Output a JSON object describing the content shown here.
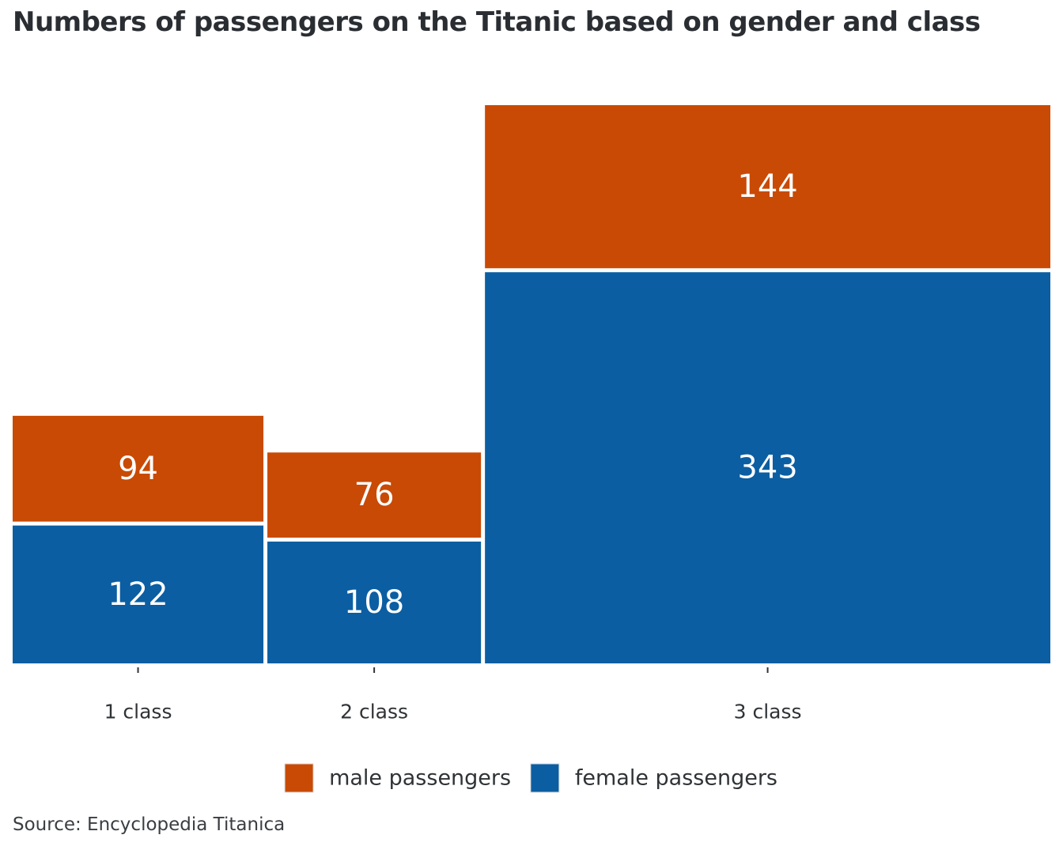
{
  "chart_data": {
    "type": "bar",
    "stacked": true,
    "variable_width": true,
    "title": "Numbers of passengers on the Titanic based on gender and class",
    "categories": [
      "1 class",
      "2 class",
      "3 class"
    ],
    "series": [
      {
        "name": "female passengers",
        "values": [
          122,
          108,
          343
        ],
        "color": "#0b5ea2"
      },
      {
        "name": "male passengers",
        "values": [
          94,
          76,
          144
        ],
        "color": "#c94a05"
      }
    ],
    "legend": {
      "position": "bottom",
      "order": [
        "male passengers",
        "female passengers"
      ]
    },
    "grid": false,
    "ylim": [
      0,
      487
    ]
  },
  "source": "Source: Encyclopedia Titanica"
}
